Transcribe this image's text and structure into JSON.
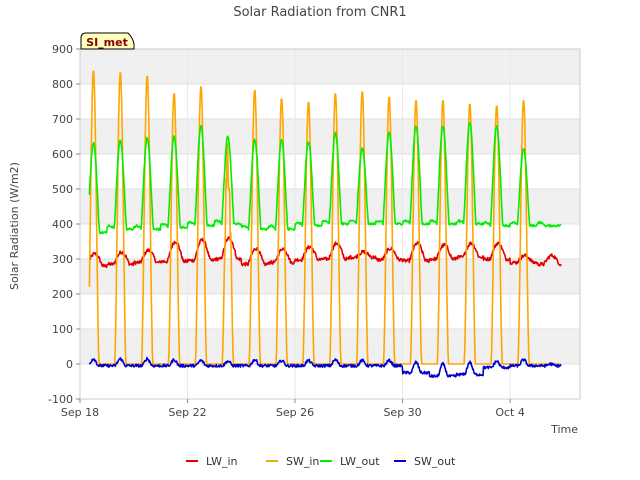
{
  "chart_data": {
    "type": "line",
    "title": "Solar Radiation from CNR1",
    "badge": "SI_met",
    "xlabel": "Time",
    "ylabel": "Solar Radiation (W/m2)",
    "ylim": [
      -100,
      900
    ],
    "yticks": [
      -100,
      0,
      100,
      200,
      300,
      400,
      500,
      600,
      700,
      800,
      900
    ],
    "xlim_days": [
      0,
      18.6
    ],
    "xticks": [
      {
        "day": 0,
        "label": "Sep 18"
      },
      {
        "day": 4,
        "label": "Sep 22"
      },
      {
        "day": 8,
        "label": "Sep 26"
      },
      {
        "day": 12,
        "label": "Sep 30"
      },
      {
        "day": 16,
        "label": "Oct 4"
      }
    ],
    "data_start_day": 0.35,
    "data_end_day": 17.9,
    "series": [
      {
        "name": "LW_in",
        "color": "#e00000",
        "daily_base": [
          280,
          285,
          290,
          293,
          296,
          300,
          285,
          290,
          298,
          300,
          305,
          298,
          295,
          300,
          305,
          300,
          290,
          285
        ],
        "daily_peak": [
          315,
          320,
          325,
          350,
          355,
          360,
          330,
          330,
          335,
          345,
          320,
          330,
          345,
          340,
          345,
          345,
          310,
          310
        ]
      },
      {
        "name": "SW_in",
        "color": "#ffa500",
        "daily_base": [
          0,
          0,
          0,
          0,
          0,
          0,
          0,
          0,
          0,
          0,
          0,
          0,
          0,
          0,
          0,
          0,
          0,
          0
        ],
        "daily_peak": [
          840,
          835,
          825,
          775,
          795,
          720,
          785,
          760,
          750,
          775,
          780,
          765,
          755,
          755,
          745,
          740,
          755,
          0
        ]
      },
      {
        "name": "LW_out",
        "color": "#00ee00",
        "daily_base": [
          375,
          385,
          385,
          390,
          395,
          400,
          385,
          385,
          395,
          400,
          400,
          400,
          400,
          400,
          400,
          395,
          395,
          395
        ],
        "daily_peak": [
          630,
          640,
          645,
          650,
          680,
          650,
          640,
          640,
          635,
          660,
          615,
          660,
          680,
          680,
          690,
          680,
          615,
          395
        ]
      },
      {
        "name": "SW_out",
        "color": "#0000cc",
        "daily_base": [
          -5,
          -5,
          -5,
          -5,
          -5,
          -5,
          -5,
          -5,
          -5,
          -5,
          -5,
          -5,
          -25,
          -35,
          -30,
          -10,
          -5,
          -5
        ],
        "daily_peak": [
          15,
          15,
          15,
          12,
          10,
          8,
          12,
          10,
          10,
          12,
          10,
          10,
          5,
          0,
          5,
          8,
          12,
          0
        ]
      }
    ],
    "legend_position": "bottom",
    "grid": true
  }
}
